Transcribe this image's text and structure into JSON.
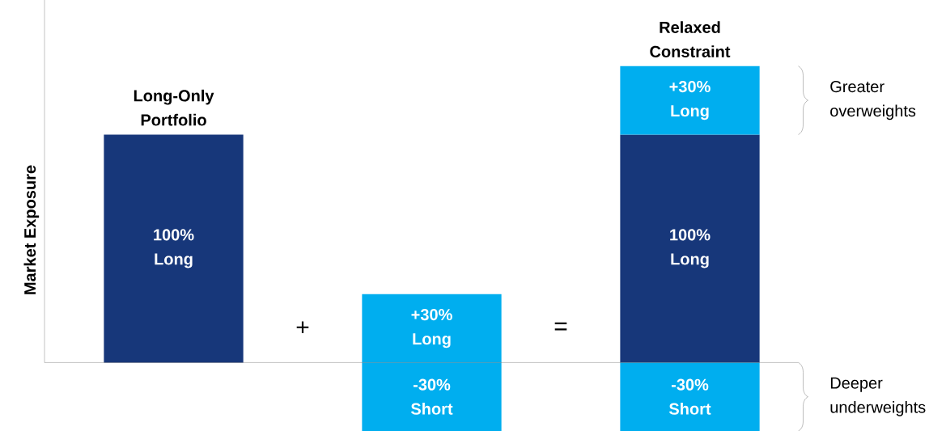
{
  "chart_data": {
    "type": "bar",
    "ylabel": "Market Exposure",
    "categories": [
      "Long-Only Portfolio",
      null,
      "Relaxed Constraint"
    ],
    "stacked": true,
    "ylim": [
      -30,
      159
    ],
    "tick_labels": false,
    "series": [
      {
        "color": "#17377a",
        "values": [
          100,
          null,
          100
        ],
        "value_labels": [
          "100% Long",
          null,
          "100% Long"
        ]
      },
      {
        "color": "#00aeef",
        "values": [
          null,
          30,
          30
        ],
        "value_labels": [
          null,
          "+30% Long",
          "+30% Long"
        ]
      },
      {
        "color": "#00aeef",
        "values": [
          null,
          -30,
          -30
        ],
        "value_labels": [
          null,
          "-30% Short",
          "-30% Short"
        ]
      }
    ],
    "annotations": [
      "+",
      "=",
      "Greater overweights",
      "Deeper underweights"
    ]
  }
}
